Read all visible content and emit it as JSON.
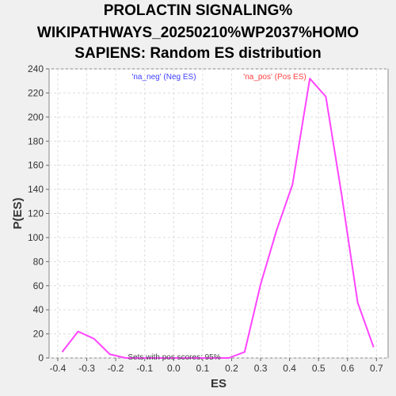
{
  "chart_data": {
    "type": "line",
    "title_lines": [
      "PROLACTIN SIGNALING%",
      "WIKIPATHWAYS_20250210%WP2037%HOMO",
      "SAPIENS: Random ES distribution"
    ],
    "xlabel": "ES",
    "ylabel": "P(ES)",
    "xlim": [
      -0.43,
      0.74
    ],
    "ylim": [
      0,
      240
    ],
    "xticks": [
      "-0.4",
      "-0.3",
      "-0.2",
      "-0.1",
      "0.0",
      "0.1",
      "0.2",
      "0.3",
      "0.4",
      "0.5",
      "0.6",
      "0.7"
    ],
    "xtick_values": [
      -0.4,
      -0.3,
      -0.2,
      -0.1,
      0.0,
      0.1,
      0.2,
      0.3,
      0.4,
      0.5,
      0.6,
      0.7
    ],
    "yticks": [
      "0",
      "20",
      "40",
      "60",
      "80",
      "100",
      "120",
      "140",
      "160",
      "180",
      "200",
      "220",
      "240"
    ],
    "ytick_values": [
      0,
      20,
      40,
      60,
      80,
      100,
      120,
      140,
      160,
      180,
      200,
      220,
      240
    ],
    "grid": true,
    "series": [
      {
        "color": "#ff44ff",
        "x": [
          -0.385,
          -0.33,
          -0.275,
          -0.22,
          -0.165,
          -0.11,
          -0.055,
          0.0,
          0.055,
          0.11,
          0.19,
          0.245,
          0.3,
          0.355,
          0.41,
          0.47,
          0.525,
          0.58,
          0.635,
          0.69
        ],
        "y": [
          5,
          22,
          16,
          3,
          0,
          0,
          0,
          0,
          0,
          0,
          0,
          5,
          61,
          106,
          144,
          232,
          217,
          135,
          46,
          9
        ]
      }
    ],
    "annotations": {
      "neg_label": "'na_neg' (Neg ES)",
      "neg_color": "#4040ff",
      "pos_label": "'na_pos' (Pos ES)",
      "pos_color": "#ff4040",
      "footer": "Sets with pos scores: 95%"
    }
  }
}
